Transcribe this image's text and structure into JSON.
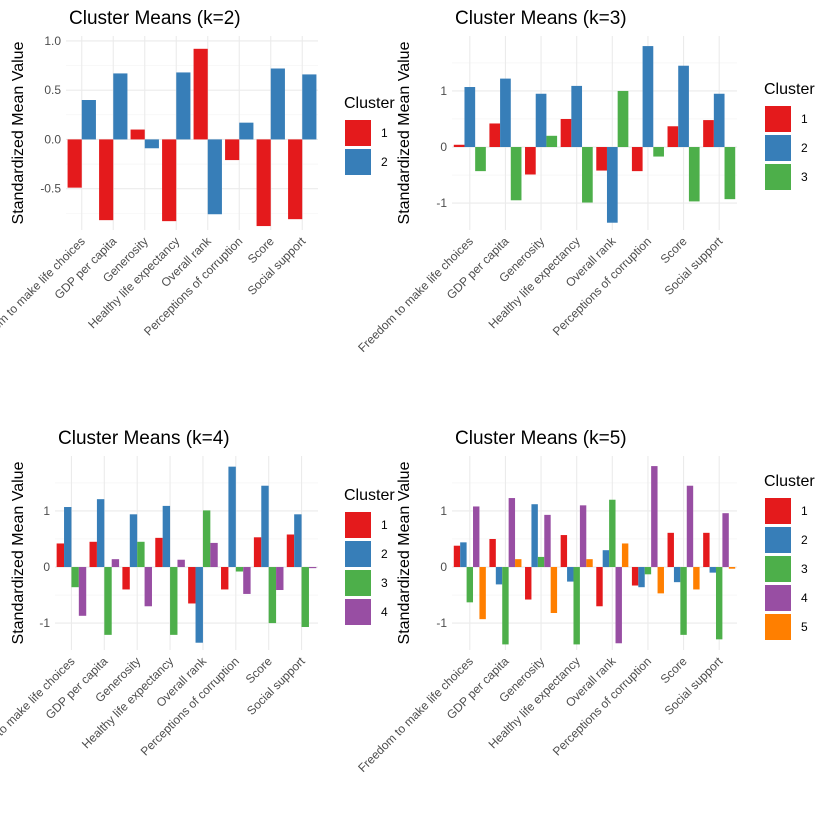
{
  "colors": {
    "cluster_1": "#E41A1C",
    "cluster_2": "#377EB8",
    "cluster_3": "#4DAF4A",
    "cluster_4": "#984EA3",
    "cluster_5": "#FF7F00"
  },
  "chart_data": [
    {
      "type": "bar",
      "title": "Cluster Means (k=2)",
      "xlabel": "",
      "ylabel": "Standardized Mean Value",
      "categories": [
        "Freedom to make life choices",
        "GDP per capita",
        "Generosity",
        "Healthy life expectancy",
        "Overall rank",
        "Perceptions of corruption",
        "Score",
        "Social support"
      ],
      "ylim": [
        -0.92,
        1.05
      ],
      "yticks": [
        -0.5,
        0.0,
        0.5,
        1.0
      ],
      "ytick_labels": [
        "-0.5",
        "0.0",
        "0.5",
        "1.0"
      ],
      "legend_title": "Cluster",
      "legend_position": "right",
      "series": [
        {
          "name": "1",
          "values": [
            -0.49,
            -0.82,
            0.1,
            -0.83,
            0.92,
            -0.21,
            -0.88,
            -0.81
          ]
        },
        {
          "name": "2",
          "values": [
            0.4,
            0.67,
            -0.09,
            0.68,
            -0.76,
            0.17,
            0.72,
            0.66
          ]
        }
      ]
    },
    {
      "type": "bar",
      "title": "Cluster Means (k=3)",
      "xlabel": "",
      "ylabel": "Standardized Mean Value",
      "categories": [
        "Freedom to make life choices",
        "GDP per capita",
        "Generosity",
        "Healthy life expectancy",
        "Overall rank",
        "Perceptions of corruption",
        "Score",
        "Social support"
      ],
      "ylim": [
        -1.48,
        1.98
      ],
      "yticks": [
        -1,
        0,
        1
      ],
      "ytick_labels": [
        "-1",
        "0",
        "1"
      ],
      "legend_title": "Cluster",
      "legend_position": "right",
      "series": [
        {
          "name": "1",
          "values": [
            0.04,
            0.42,
            -0.49,
            0.5,
            -0.42,
            -0.43,
            0.37,
            0.48
          ]
        },
        {
          "name": "2",
          "values": [
            1.07,
            1.22,
            0.95,
            1.09,
            -1.35,
            1.8,
            1.45,
            0.95
          ]
        },
        {
          "name": "3",
          "values": [
            -0.43,
            -0.95,
            0.2,
            -0.99,
            1.0,
            -0.17,
            -0.97,
            -0.93
          ]
        }
      ]
    },
    {
      "type": "bar",
      "title": "Cluster Means (k=4)",
      "xlabel": "",
      "ylabel": "Standardized Mean Value",
      "categories": [
        "Freedom to make life choices",
        "GDP per capita",
        "Generosity",
        "Healthy life expectancy",
        "Overall rank",
        "Perceptions of corruption",
        "Score",
        "Social support"
      ],
      "ylim": [
        -1.48,
        1.98
      ],
      "yticks": [
        -1,
        0,
        1
      ],
      "ytick_labels": [
        "-1",
        "0",
        "1"
      ],
      "legend_title": "Cluster",
      "legend_position": "right",
      "series": [
        {
          "name": "1",
          "values": [
            0.42,
            0.45,
            -0.4,
            0.52,
            -0.65,
            -0.4,
            0.53,
            0.58
          ]
        },
        {
          "name": "2",
          "values": [
            1.07,
            1.21,
            0.94,
            1.09,
            -1.35,
            1.79,
            1.45,
            0.94
          ]
        },
        {
          "name": "3",
          "values": [
            -0.36,
            -1.21,
            0.45,
            -1.21,
            1.01,
            -0.08,
            -1.0,
            -1.07
          ]
        },
        {
          "name": "4",
          "values": [
            -0.87,
            0.14,
            -0.7,
            0.13,
            0.43,
            -0.48,
            -0.41,
            -0.02
          ]
        }
      ]
    },
    {
      "type": "bar",
      "title": "Cluster Means (k=5)",
      "xlabel": "",
      "ylabel": "Standardized Mean Value",
      "categories": [
        "Freedom to make life choices",
        "GDP per capita",
        "Generosity",
        "Healthy life expectancy",
        "Overall rank",
        "Perceptions of corruption",
        "Score",
        "Social support"
      ],
      "ylim": [
        -1.48,
        1.98
      ],
      "yticks": [
        -1,
        0,
        1
      ],
      "ytick_labels": [
        "-1",
        "0",
        "1"
      ],
      "legend_title": "Cluster",
      "legend_position": "right",
      "series": [
        {
          "name": "1",
          "values": [
            0.38,
            0.5,
            -0.58,
            0.57,
            -0.7,
            -0.33,
            0.61,
            0.61
          ]
        },
        {
          "name": "2",
          "values": [
            0.44,
            -0.31,
            1.12,
            -0.26,
            0.3,
            -0.36,
            -0.27,
            -0.1
          ]
        },
        {
          "name": "3",
          "values": [
            -0.63,
            -1.38,
            0.18,
            -1.38,
            1.2,
            -0.13,
            -1.21,
            -1.29
          ]
        },
        {
          "name": "4",
          "values": [
            1.08,
            1.23,
            0.93,
            1.1,
            -1.36,
            1.8,
            1.45,
            0.96
          ]
        },
        {
          "name": "5",
          "values": [
            -0.93,
            0.14,
            -0.82,
            0.14,
            0.42,
            -0.47,
            -0.4,
            -0.03
          ]
        }
      ]
    }
  ]
}
